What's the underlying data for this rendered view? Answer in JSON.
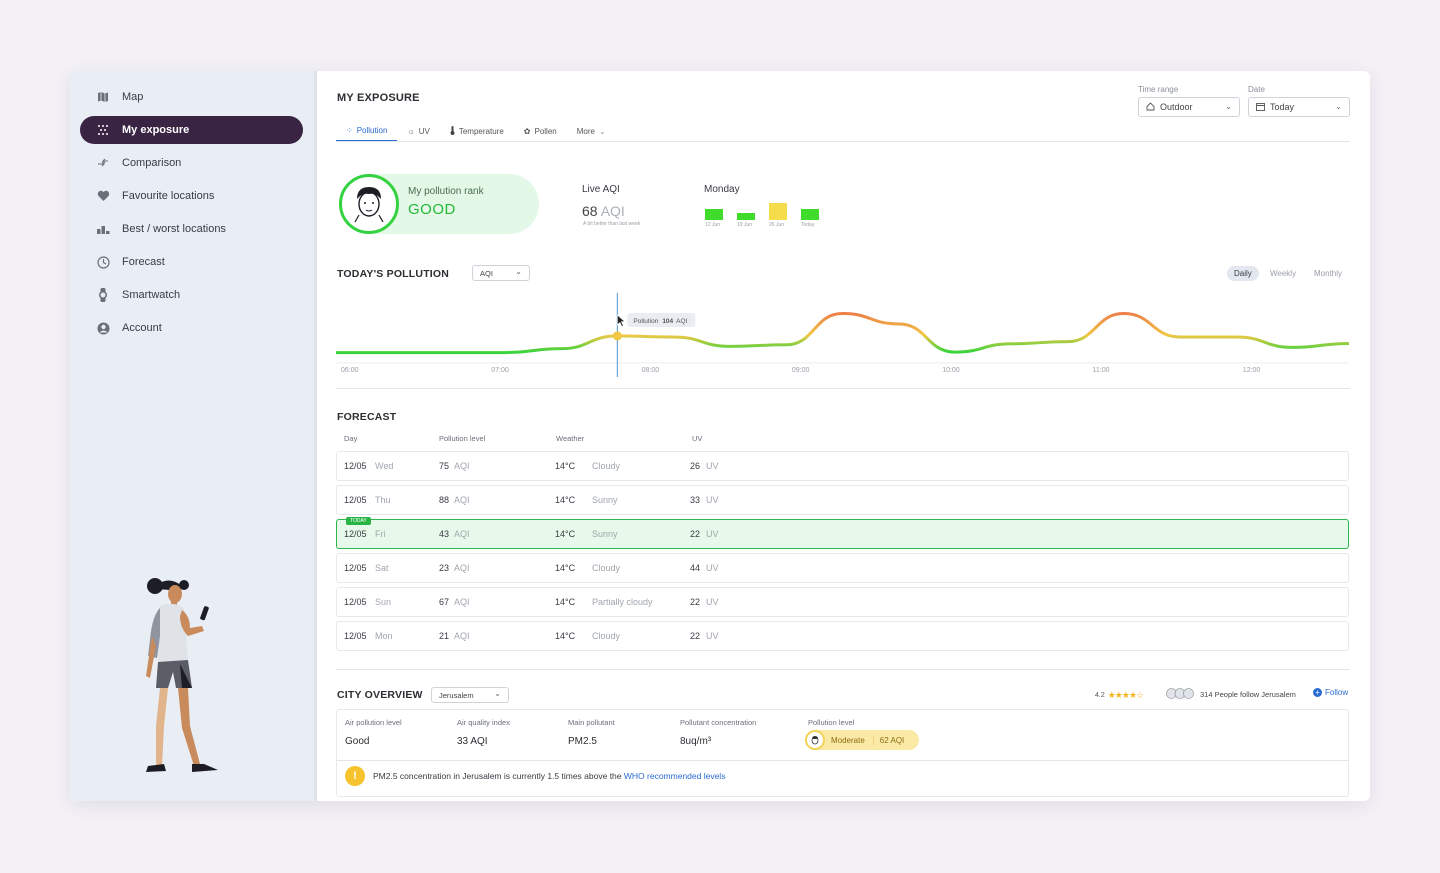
{
  "sidebar": {
    "items": [
      {
        "label": "Map",
        "icon": "map-icon"
      },
      {
        "label": "My exposure",
        "icon": "exposure-icon",
        "active": true
      },
      {
        "label": "Comparison",
        "icon": "compare-arrows-icon"
      },
      {
        "label": "Favourite locations",
        "icon": "heart-icon"
      },
      {
        "label": "Best / worst locations",
        "icon": "bar-chart-icon"
      },
      {
        "label": "Forecast",
        "icon": "clock-icon"
      },
      {
        "label": "Smartwatch",
        "icon": "watch-icon"
      },
      {
        "label": "Account",
        "icon": "account-icon"
      }
    ]
  },
  "header": {
    "title": "MY EXPOSURE",
    "time_range_label": "Time range",
    "time_range_value": "Outdoor",
    "date_label": "Date",
    "date_value": "Today"
  },
  "tabs": [
    {
      "label": "Pollution",
      "icon": "pollution-icon",
      "active": true
    },
    {
      "label": "UV",
      "icon": "sun-icon"
    },
    {
      "label": "Temperature",
      "icon": "thermometer-icon"
    },
    {
      "label": "Pollen",
      "icon": "pollen-icon"
    },
    {
      "label": "More",
      "icon": "chevron-down-icon"
    }
  ],
  "summary": {
    "rank_label": "My pollution rank",
    "rank_value": "GOOD",
    "live_aqi_label": "Live AQI",
    "live_aqi_value": "68",
    "live_aqi_unit": "AQI",
    "live_aqi_note": "A bit better than last week",
    "week_label": "Monday",
    "week_bars": [
      {
        "label": "12 Jun",
        "level": 0.55,
        "color": "#3fdc2c"
      },
      {
        "label": "19 Jun",
        "level": 0.25,
        "color": "#3fdc2c"
      },
      {
        "label": "26 Jun",
        "level": 1.0,
        "color": "#f4dc4a"
      },
      {
        "label": "Today",
        "level": 0.55,
        "color": "#3fdc2c"
      }
    ]
  },
  "todays_pollution": {
    "title": "TODAY'S POLLUTION",
    "metric_select": "AQI",
    "toggles": [
      "Daily",
      "Weekly",
      "Monthly"
    ],
    "active_toggle": "Daily",
    "tooltip_label": "Pollution",
    "tooltip_value": "104",
    "tooltip_unit": "AQI"
  },
  "chart_data": {
    "type": "line",
    "x": [
      "06:00",
      "06:30",
      "07:00",
      "07:30",
      "08:00",
      "08:20",
      "08:40",
      "09:00",
      "09:20",
      "09:40",
      "10:00",
      "10:20",
      "10:40",
      "11:00",
      "11:20",
      "11:40",
      "12:00",
      "12:20",
      "12:40"
    ],
    "y": [
      40,
      40,
      40,
      40,
      55,
      104,
      100,
      64,
      70,
      190,
      150,
      42,
      74,
      82,
      190,
      100,
      100,
      60,
      75
    ],
    "ylim": [
      0,
      250
    ],
    "tick_labels": [
      "06:00",
      "07:00",
      "08:00",
      "09:00",
      "10:00",
      "11:00",
      "12:00"
    ],
    "colors": {
      "good": "#39d43d",
      "moderate": "#f2c744",
      "unhealthy": "#e8574a"
    }
  },
  "forecast": {
    "title": "FORECAST",
    "columns": [
      "Day",
      "Pollution level",
      "Weather",
      "UV"
    ],
    "today_tag": "TODAY",
    "rows": [
      {
        "date": "12/05",
        "day": "Wed",
        "aqi": "75",
        "aqi_unit": "AQI",
        "temp": "14°C",
        "weather": "Cloudy",
        "uv": "26",
        "uv_unit": "UV"
      },
      {
        "date": "12/05",
        "day": "Thu",
        "aqi": "88",
        "aqi_unit": "AQI",
        "temp": "14°C",
        "weather": "Sunny",
        "uv": "33",
        "uv_unit": "UV"
      },
      {
        "date": "12/05",
        "day": "Fri",
        "aqi": "43",
        "aqi_unit": "AQI",
        "temp": "14°C",
        "weather": "Sunny",
        "uv": "22",
        "uv_unit": "UV",
        "today": true
      },
      {
        "date": "12/05",
        "day": "Sat",
        "aqi": "23",
        "aqi_unit": "AQI",
        "temp": "14°C",
        "weather": "Cloudy",
        "uv": "44",
        "uv_unit": "UV"
      },
      {
        "date": "12/05",
        "day": "Sun",
        "aqi": "67",
        "aqi_unit": "AQI",
        "temp": "14°C",
        "weather": "Partially cloudy",
        "uv": "22",
        "uv_unit": "UV"
      },
      {
        "date": "12/05",
        "day": "Mon",
        "aqi": "21",
        "aqi_unit": "AQI",
        "temp": "14°C",
        "weather": "Cloudy",
        "uv": "22",
        "uv_unit": "UV"
      }
    ]
  },
  "city_overview": {
    "title": "CITY OVERVIEW",
    "city_select": "Jerusalem",
    "rating": "4.2",
    "stars": 4.5,
    "followers_text": "314 People follow Jerusalem",
    "follow_label": "Follow",
    "fields": [
      {
        "label": "Air pollution level",
        "value": "Good"
      },
      {
        "label": "Air quality index",
        "value": "33 AQI"
      },
      {
        "label": "Main pollutant",
        "value": "PM2.5"
      },
      {
        "label": "Pollutant concentration",
        "value": "8uq/m³"
      }
    ],
    "level_label": "Pollution level",
    "level_value": "Moderate",
    "level_aqi": "62 AQI",
    "alert_text": "PM2.5 concentration in Jerusalem is currently 1.5 times above the",
    "alert_link": "WHO recommended levels"
  }
}
